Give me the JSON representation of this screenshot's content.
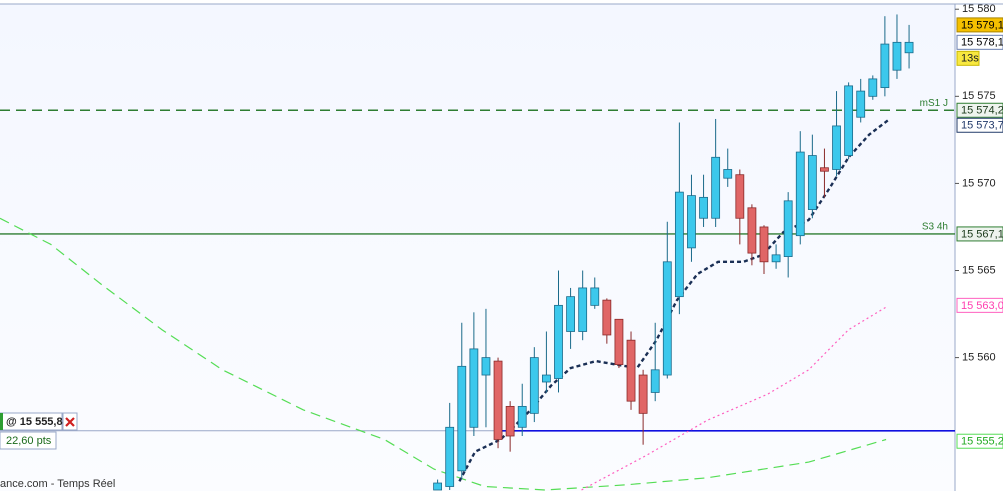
{
  "chart_data": {
    "type": "candlestick",
    "x": [
      0,
      1,
      2,
      3,
      4,
      5,
      6,
      7,
      8,
      9,
      10,
      11,
      12,
      13,
      14,
      15,
      16,
      17,
      18,
      19,
      20,
      21,
      22,
      23,
      24,
      25,
      26,
      27,
      28,
      29,
      30,
      31,
      32,
      33,
      34,
      35,
      36,
      37,
      38,
      39
    ],
    "open": [
      15552.4,
      15552.6,
      15553.5,
      15556.0,
      15559.0,
      15559.8,
      15557.2,
      15556.0,
      15556.8,
      15558.6,
      15558.8,
      15561.5,
      15561.5,
      15563.0,
      15563.3,
      15562.2,
      15561.0,
      15559.0,
      15558.0,
      15559.0,
      15563.5,
      15566.3,
      15568.0,
      15568.0,
      15570.3,
      15570.5,
      15568.6,
      15567.5,
      15565.5,
      15565.8,
      15567.0,
      15568.5,
      15570.9,
      15570.8,
      15571.6,
      15573.8,
      15575.0,
      15575.5,
      15576.5,
      15577.5
    ],
    "high": [
      15553.0,
      15557.4,
      15562.0,
      15562.6,
      15562.8,
      15560.0,
      15557.5,
      15558.5,
      15560.6,
      15561.5,
      15565.0,
      15564.0,
      15565.0,
      15564.6,
      15563.4,
      15562.2,
      15561.5,
      15559.3,
      15562.0,
      15567.8,
      15573.5,
      15570.5,
      15570.5,
      15573.7,
      15572.0,
      15570.8,
      15568.8,
      15567.6,
      15566.5,
      15569.5,
      15573.0,
      15572.8,
      15572.0,
      15575.3,
      15575.8,
      15576.0,
      15576.2,
      15579.6,
      15579.7,
      15579.1
    ],
    "low": [
      15552.4,
      15552.4,
      15553.0,
      15555.5,
      15556.0,
      15554.8,
      15554.6,
      15555.5,
      15556.3,
      15558.0,
      15558.0,
      15560.5,
      15561.0,
      15562.8,
      15560.8,
      15559.4,
      15557.0,
      15555.0,
      15557.5,
      15558.8,
      15562.5,
      15565.5,
      15567.5,
      15567.5,
      15569.8,
      15566.5,
      15565.3,
      15564.8,
      15565.1,
      15564.6,
      15566.5,
      15568.0,
      15569.2,
      15570.4,
      15571.4,
      15573.5,
      15574.8,
      15575.0,
      15576.0,
      15576.6
    ],
    "close": [
      15552.8,
      15556.0,
      15559.5,
      15560.5,
      15560.0,
      15555.3,
      15555.5,
      15557.2,
      15560.0,
      15559.0,
      15563.0,
      15563.5,
      15564.0,
      15564.0,
      15561.3,
      15559.6,
      15557.5,
      15556.8,
      15559.3,
      15565.5,
      15569.5,
      15569.3,
      15569.2,
      15571.5,
      15570.8,
      15568.0,
      15566.0,
      15565.5,
      15565.9,
      15569.0,
      15571.8,
      15571.6,
      15570.7,
      15573.3,
      15575.6,
      15575.3,
      15576.0,
      15578.0,
      15578.1,
      15578.1
    ],
    "up_color": "#3cc8ec",
    "down_color": "#e06666",
    "xlim": [
      -36.2,
      42.8
    ],
    "ylim": [
      15552.4,
      15580.3
    ],
    "yticks": [
      {
        "value": 15560,
        "label": "15 560"
      },
      {
        "value": 15565,
        "label": "15 565"
      },
      {
        "value": 15570,
        "label": "15 570"
      },
      {
        "value": 15575,
        "label": "15 575"
      },
      {
        "value": 15580,
        "label": "15 580"
      }
    ],
    "overlays": [
      {
        "color": "#55dd55",
        "style": "dashed",
        "x": [
          -36.2,
          -32.0,
          -27.8,
          -22.8,
          -17.8,
          -11.1,
          -4.4,
          -0.3,
          3.9,
          8.9,
          15.6,
          22.3,
          30.7,
          37.1
        ],
        "values": [
          15568.0,
          15566.5,
          15564.2,
          15561.6,
          15559.3,
          15557.0,
          15555.3,
          15553.6,
          15552.6,
          15552.4,
          15552.7,
          15553.1,
          15554.0,
          15555.3
        ]
      },
      {
        "color": "#ff5fbf",
        "style": "dotted",
        "x": [
          11.9,
          17.3,
          22.3,
          27.3,
          30.7,
          34.0,
          37.1
        ],
        "values": [
          15552.4,
          15554.4,
          15556.4,
          15557.9,
          15559.3,
          15561.6,
          15562.9
        ]
      },
      {
        "color": "#1a2f55",
        "style": "bold-dashed",
        "x": [
          1.8,
          3.1,
          5.2,
          6.4,
          7.7,
          9.4,
          11.0,
          13.1,
          14.8,
          16.5,
          18.1,
          19.8,
          21.5,
          23.2,
          25.3,
          26.9,
          28.6,
          30.7,
          32.4,
          34.0,
          35.7,
          37.4
        ],
        "values": [
          15552.9,
          15554.6,
          15555.3,
          15556.1,
          15557.0,
          15558.4,
          15559.4,
          15559.8,
          15559.6,
          15559.4,
          15561.0,
          15563.3,
          15564.8,
          15565.5,
          15565.5,
          15565.9,
          15567.2,
          15567.9,
          15569.7,
          15571.5,
          15572.8,
          15573.7
        ]
      }
    ],
    "levels": [
      {
        "label": "mS1 J",
        "value": 15574.2,
        "color": "#2e7d32",
        "style": "dashed"
      },
      {
        "label": "S3 4h",
        "value": 15567.1,
        "color": "#2e7d32",
        "style": "solid"
      },
      {
        "value": 15555.8,
        "color": "#1010e0",
        "style": "solid"
      }
    ],
    "price_tags": [
      {
        "value": 15579.1,
        "label": "15 579,1",
        "fill": "#f5c000",
        "border": "#a88400",
        "text_color": "#000000"
      },
      {
        "value": 15578.1,
        "label": "15 578,1",
        "fill": "#ffffff",
        "border": "#6a7fb0",
        "text_color": "#000000"
      },
      {
        "value": 15574.2,
        "label": "15 574,2",
        "fill": "#eef4ee",
        "border": "#2e7d32",
        "text_color": "#1b3a1b"
      },
      {
        "value": 15573.7,
        "label": "15 573,7",
        "fill": "#ffffff",
        "border": "#223a6a",
        "text_color": "#223a6a"
      },
      {
        "value": 15567.1,
        "label": "15 567,1",
        "fill": "#eef4ee",
        "border": "#2e7d32",
        "text_color": "#1b3a1b"
      },
      {
        "value": 15563.0,
        "label": "15 563,0",
        "fill": "#ffffff",
        "border": "#ff5fbf",
        "text_color": "#ff3fb0"
      },
      {
        "value": 15555.2,
        "label": "15 555,2",
        "fill": "#ffffff",
        "border": "#55dd55",
        "text_color": "#22aa22"
      }
    ],
    "countdown": "13s",
    "order": {
      "value": 15555.8,
      "label": "@ 15 555,8"
    },
    "distance": {
      "value": 22.6,
      "label": "22,60 pts"
    },
    "footer": "ance.com - Temps Réel"
  }
}
